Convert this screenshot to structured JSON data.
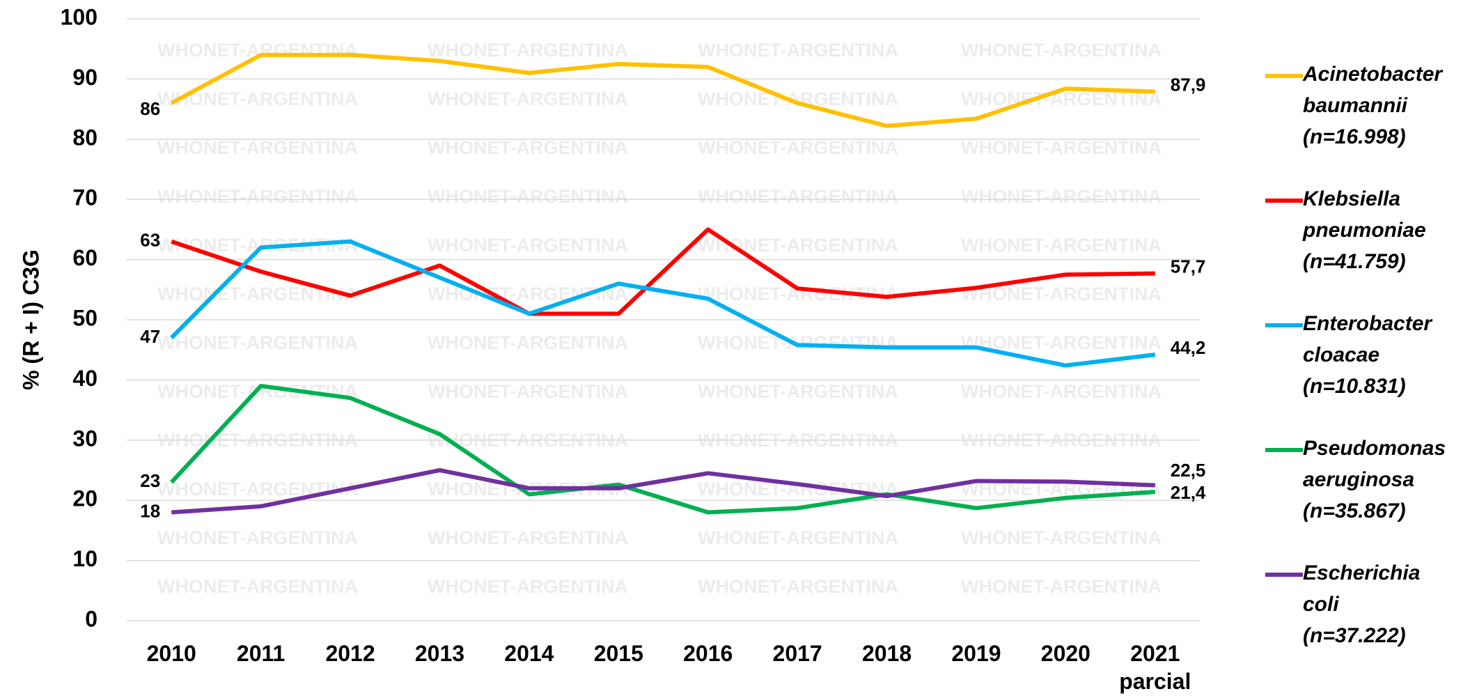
{
  "chart_data": {
    "type": "line",
    "y_axis_label": "% (R + I) C3G",
    "watermark": "WHONET-ARGENTINA",
    "categories": [
      "2010",
      "2011",
      "2012",
      "2013",
      "2014",
      "2015",
      "2016",
      "2017",
      "2018",
      "2019",
      "2020",
      "2021 parcial"
    ],
    "ylim": [
      0,
      100
    ],
    "yticks": [
      0,
      10,
      20,
      30,
      40,
      50,
      60,
      70,
      80,
      90,
      100
    ],
    "grid": true,
    "legend": "right",
    "series": [
      {
        "name": "Acinetobacter baumannii (n=16.998)",
        "color": "#ffc000",
        "values": [
          86,
          94,
          94,
          93,
          91,
          92.5,
          92,
          86,
          82.2,
          83.4,
          88.4,
          87.9
        ],
        "value_labels": [
          "86",
          null,
          null,
          null,
          null,
          null,
          null,
          null,
          null,
          null,
          null,
          "87,9"
        ]
      },
      {
        "name": "Klebsiella pneumoniae (n=41.759)",
        "color": "#ff0000",
        "values": [
          63,
          58,
          54,
          59,
          51,
          51,
          65,
          55.2,
          53.8,
          55.3,
          57.5,
          57.7
        ],
        "value_labels": [
          "63",
          null,
          null,
          null,
          null,
          null,
          null,
          null,
          null,
          null,
          null,
          "57,7"
        ]
      },
      {
        "name": "Enterobacter cloacae (n=10.831)",
        "color": "#00b0f0",
        "values": [
          47,
          62,
          63,
          57,
          51,
          56,
          53.5,
          45.8,
          45.4,
          45.4,
          42.4,
          44.2
        ],
        "value_labels": [
          "47",
          null,
          null,
          null,
          null,
          null,
          null,
          null,
          null,
          null,
          null,
          "44,2"
        ]
      },
      {
        "name": "Pseudomonas aeruginosa (n=35.867)",
        "color": "#00b050",
        "values": [
          23,
          39,
          37,
          31,
          21,
          22.6,
          18,
          18.7,
          21,
          18.7,
          20.4,
          21.4
        ],
        "value_labels": [
          "23",
          null,
          null,
          null,
          null,
          null,
          null,
          null,
          null,
          null,
          null,
          "21,4"
        ]
      },
      {
        "name": "Escherichia coli (n=37.222)",
        "color": "#7030a0",
        "values": [
          18,
          19,
          22,
          25,
          22,
          22,
          24.5,
          22.7,
          20.7,
          23.2,
          23.1,
          22.5
        ],
        "value_labels": [
          "18",
          null,
          null,
          null,
          null,
          null,
          null,
          null,
          null,
          null,
          null,
          "22,5"
        ]
      }
    ]
  }
}
